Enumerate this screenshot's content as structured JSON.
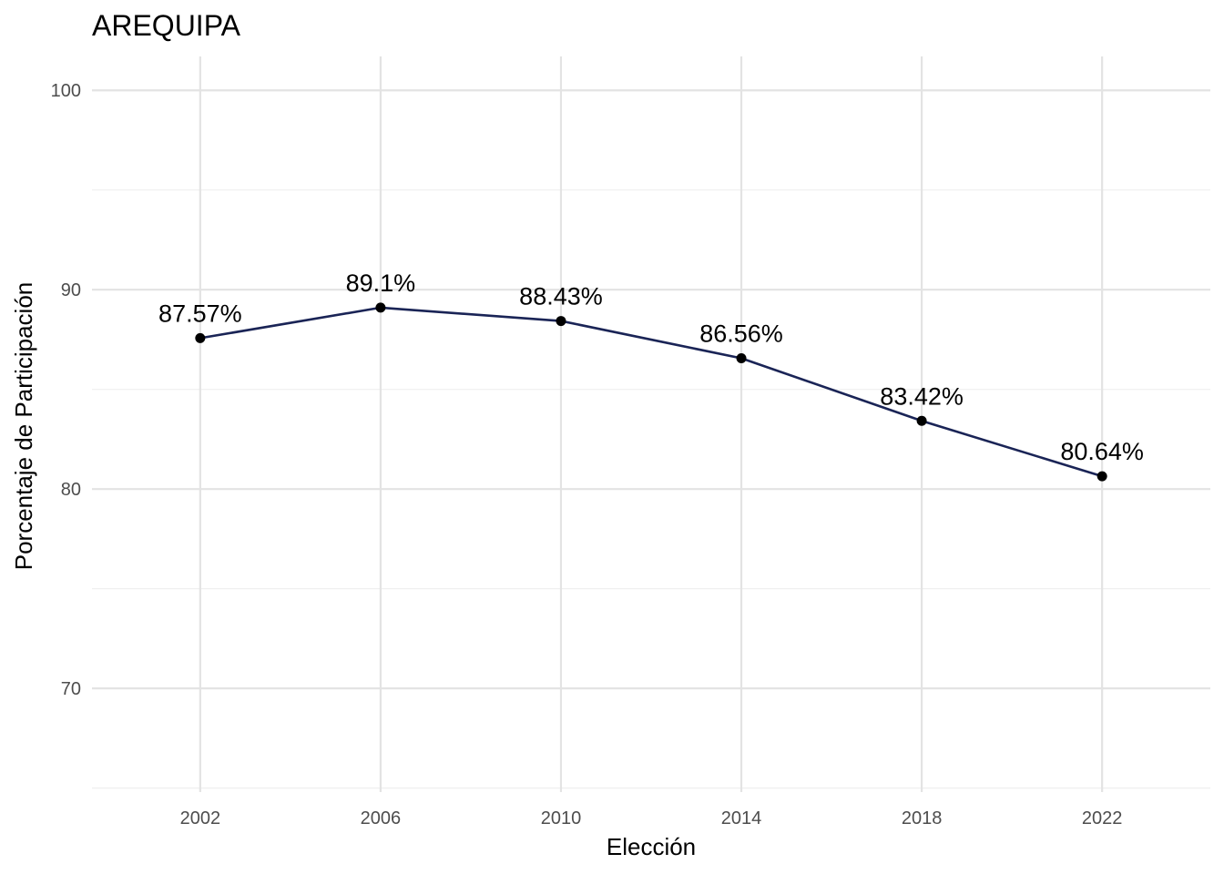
{
  "chart_data": {
    "type": "line",
    "title": "AREQUIPA",
    "xlabel": "Elección",
    "ylabel": "Porcentaje de Participación",
    "x": [
      2002,
      2006,
      2010,
      2014,
      2018,
      2022
    ],
    "series": [
      {
        "values": [
          87.57,
          89.1,
          88.43,
          86.56,
          83.42,
          80.64
        ],
        "labels": [
          "87.57%",
          "89.1%",
          "88.43%",
          "86.56%",
          "83.42%",
          "80.64%"
        ],
        "color": "#1a2456"
      }
    ],
    "xticks": [
      2002,
      2006,
      2010,
      2014,
      2018,
      2022
    ],
    "yticks": [
      70,
      80,
      90,
      100
    ],
    "xlim": [
      1999.6,
      2024.4
    ],
    "ylim": [
      64.8,
      101.7
    ],
    "grid": true,
    "legend": "none",
    "point_color": "#000000"
  }
}
